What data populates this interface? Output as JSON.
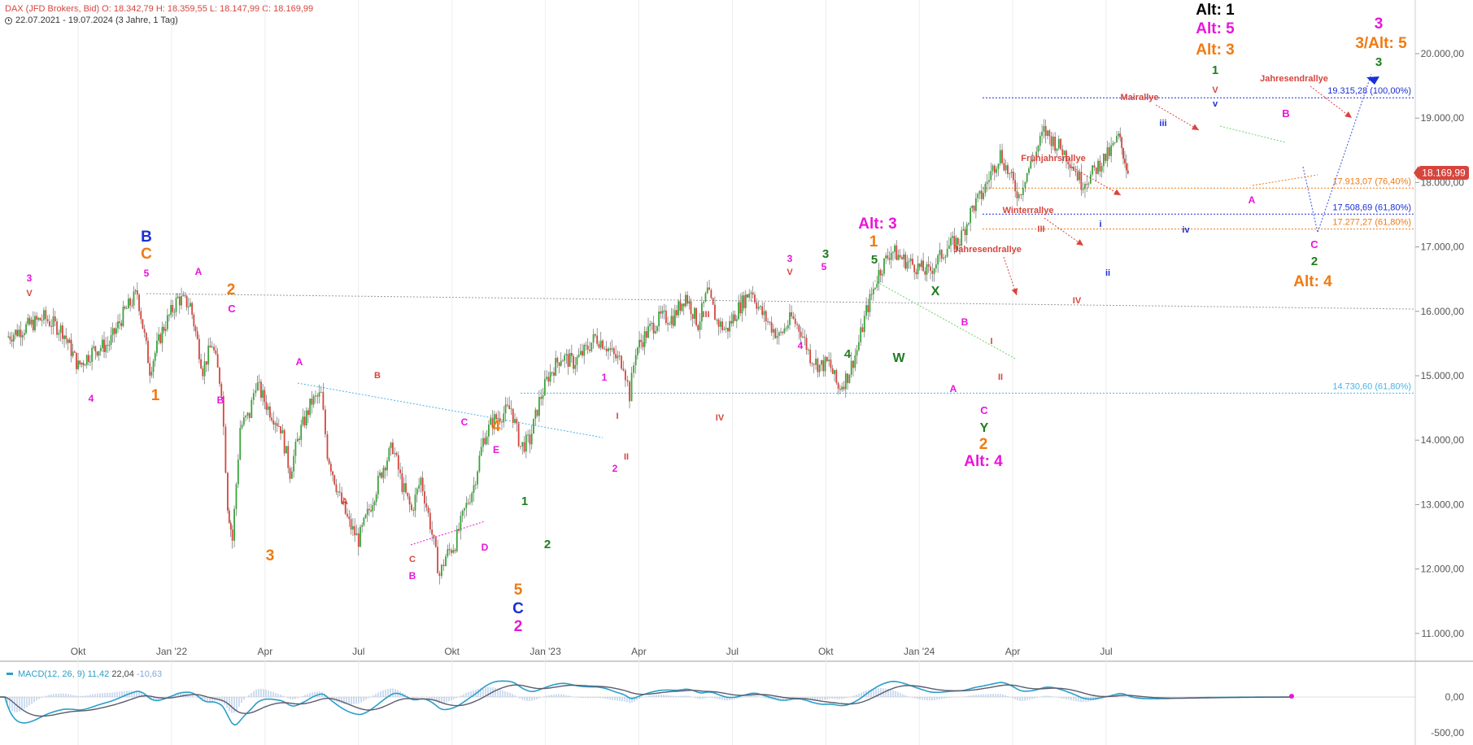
{
  "header": {
    "line1": "DAX (JFD Brokers, Bid)  O: 18.342,79  H: 18.359,55  L: 18.147,99  C: 18.169,99",
    "line2": "22.07.2021 - 19.07.2024   (3 Jahre, 1 Tag)"
  },
  "price_tag": "18.169,99",
  "macd": {
    "label": "MACD(12, 26, 9)",
    "v1": "11,42",
    "v2": "22,04",
    "v3": "-10,63",
    "ticks": [
      "0,00",
      "-500,00"
    ]
  },
  "colors": {
    "up": "#3aa43a",
    "down": "#d6453d",
    "magenta": "#e815d8",
    "orange": "#f07a12",
    "green": "#1e7d1e",
    "red": "#d6453d",
    "blue": "#1a2fd6",
    "black": "#000000",
    "fib_blue": "#1a2fd6",
    "fib_orange": "#f07a12",
    "fib_cyan": "#46b5e8"
  },
  "chart_data": {
    "type": "candlestick",
    "title": "DAX (JFD Brokers, Bid)",
    "period": "22.07.2021 - 19.07.2024",
    "ylim": [
      10800,
      20800
    ],
    "y_ticks": [
      "11.000,00",
      "12.000,00",
      "13.000,00",
      "14.000,00",
      "15.000,00",
      "16.000,00",
      "17.000,00",
      "18.000,00",
      "19.000,00",
      "20.000,00"
    ],
    "x_labels": [
      "Okt",
      "Jan '22",
      "Apr",
      "Jul",
      "Okt",
      "Jan '23",
      "Apr",
      "Jul",
      "Okt",
      "Jan '24",
      "Apr",
      "Jul"
    ],
    "x_ticks_month_index": [
      2.3,
      5.3,
      8.3,
      11.3,
      14.3,
      17.3,
      20.3,
      23.3,
      26.3,
      29.3,
      32.3,
      35.3
    ],
    "price_path_month_index_and_close": [
      [
        0,
        15600
      ],
      [
        0.8,
        15800
      ],
      [
        1.2,
        15900
      ],
      [
        1.8,
        15700
      ],
      [
        2.3,
        15150
      ],
      [
        2.8,
        15400
      ],
      [
        3.3,
        15500
      ],
      [
        3.8,
        16000
      ],
      [
        4.2,
        16280
      ],
      [
        4.6,
        15100
      ],
      [
        5.0,
        15700
      ],
      [
        5.5,
        16200
      ],
      [
        5.9,
        16100
      ],
      [
        6.3,
        15100
      ],
      [
        6.6,
        15500
      ],
      [
        6.9,
        14800
      ],
      [
        7.1,
        13000
      ],
      [
        7.25,
        12450
      ],
      [
        7.5,
        14200
      ],
      [
        7.8,
        14400
      ],
      [
        8.0,
        14900
      ],
      [
        8.4,
        14500
      ],
      [
        8.8,
        14200
      ],
      [
        9.1,
        13500
      ],
      [
        9.4,
        14100
      ],
      [
        9.8,
        14600
      ],
      [
        10.1,
        14700
      ],
      [
        10.3,
        13800
      ],
      [
        10.7,
        13100
      ],
      [
        11.0,
        12700
      ],
      [
        11.3,
        12450
      ],
      [
        11.7,
        13000
      ],
      [
        12.1,
        13600
      ],
      [
        12.4,
        13900
      ],
      [
        12.7,
        13300
      ],
      [
        13.0,
        12900
      ],
      [
        13.3,
        13400
      ],
      [
        13.6,
        12700
      ],
      [
        13.9,
        11900
      ],
      [
        14.1,
        12200
      ],
      [
        14.4,
        12400
      ],
      [
        14.7,
        12900
      ],
      [
        15.0,
        13300
      ],
      [
        15.3,
        14000
      ],
      [
        15.6,
        14300
      ],
      [
        15.9,
        14400
      ],
      [
        16.2,
        14500
      ],
      [
        16.5,
        13900
      ],
      [
        16.8,
        14000
      ],
      [
        17.1,
        14600
      ],
      [
        17.4,
        15000
      ],
      [
        17.8,
        15300
      ],
      [
        18.2,
        15200
      ],
      [
        18.6,
        15400
      ],
      [
        18.9,
        15600
      ],
      [
        19.2,
        15500
      ],
      [
        19.5,
        15300
      ],
      [
        19.8,
        15200
      ],
      [
        20.0,
        14700
      ],
      [
        20.2,
        15400
      ],
      [
        20.6,
        15700
      ],
      [
        21.0,
        15900
      ],
      [
        21.4,
        15900
      ],
      [
        21.8,
        16250
      ],
      [
        22.2,
        15800
      ],
      [
        22.5,
        16300
      ],
      [
        22.8,
        15850
      ],
      [
        23.1,
        15700
      ],
      [
        23.5,
        16050
      ],
      [
        23.9,
        16350
      ],
      [
        24.2,
        16000
      ],
      [
        24.5,
        15800
      ],
      [
        24.8,
        15600
      ],
      [
        25.2,
        15900
      ],
      [
        25.5,
        15700
      ],
      [
        25.8,
        15300
      ],
      [
        26.1,
        15150
      ],
      [
        26.4,
        15200
      ],
      [
        26.7,
        14800
      ],
      [
        27.0,
        15000
      ],
      [
        27.3,
        15400
      ],
      [
        27.6,
        16000
      ],
      [
        28.0,
        16600
      ],
      [
        28.4,
        16950
      ],
      [
        28.8,
        16800
      ],
      [
        29.2,
        16700
      ],
      [
        29.6,
        16600
      ],
      [
        29.9,
        16800
      ],
      [
        30.2,
        17000
      ],
      [
        30.6,
        17100
      ],
      [
        31.0,
        17600
      ],
      [
        31.3,
        17800
      ],
      [
        31.6,
        18150
      ],
      [
        31.9,
        18450
      ],
      [
        32.2,
        18100
      ],
      [
        32.5,
        17800
      ],
      [
        32.7,
        18100
      ],
      [
        33.0,
        18400
      ],
      [
        33.3,
        18800
      ],
      [
        33.6,
        18650
      ],
      [
        33.9,
        18500
      ],
      [
        34.2,
        18300
      ],
      [
        34.5,
        18000
      ],
      [
        34.8,
        18100
      ],
      [
        35.1,
        18300
      ],
      [
        35.4,
        18450
      ],
      [
        35.7,
        18700
      ],
      [
        35.85,
        18450
      ],
      [
        36.0,
        18170
      ]
    ],
    "fib_levels": [
      {
        "value": 19315.28,
        "label": "19.315,28 (100,00%)",
        "color": "blue"
      },
      {
        "value": 17913.07,
        "label": "17.913,07 (76,40%)",
        "color": "orange"
      },
      {
        "value": 17508.69,
        "label": "17.508,69 (61,80%)",
        "color": "blue"
      },
      {
        "value": 17277.27,
        "label": "17.277,27 (61,80%)",
        "color": "orange"
      },
      {
        "value": 14730.6,
        "label": "14.730,60 (61,80%)",
        "color": "cyan"
      }
    ],
    "wave_labels": [
      {
        "t": "3",
        "x": 36,
        "y": 346,
        "c": "magenta",
        "s": 12
      },
      {
        "t": "V",
        "x": 36,
        "y": 364,
        "c": "red",
        "s": 11
      },
      {
        "t": "4",
        "x": 112,
        "y": 494,
        "c": "magenta",
        "s": 12
      },
      {
        "t": "B",
        "x": 180,
        "y": 297,
        "c": "blue",
        "s": 19
      },
      {
        "t": "C",
        "x": 180,
        "y": 318,
        "c": "orange",
        "s": 19
      },
      {
        "t": "5",
        "x": 180,
        "y": 340,
        "c": "magenta",
        "s": 12
      },
      {
        "t": "1",
        "x": 191,
        "y": 492,
        "c": "orange",
        "s": 19
      },
      {
        "t": "A",
        "x": 244,
        "y": 338,
        "c": "magenta",
        "s": 12
      },
      {
        "t": "2",
        "x": 284,
        "y": 362,
        "c": "orange",
        "s": 19
      },
      {
        "t": "C",
        "x": 285,
        "y": 384,
        "c": "magenta",
        "s": 13
      },
      {
        "t": "B",
        "x": 271,
        "y": 496,
        "c": "magenta",
        "s": 12
      },
      {
        "t": "3",
        "x": 332,
        "y": 689,
        "c": "orange",
        "s": 19
      },
      {
        "t": "A",
        "x": 368,
        "y": 449,
        "c": "magenta",
        "s": 12
      },
      {
        "t": "B",
        "x": 464,
        "y": 465,
        "c": "red",
        "s": 11
      },
      {
        "t": "A",
        "x": 424,
        "y": 620,
        "c": "red",
        "s": 11
      },
      {
        "t": "C",
        "x": 507,
        "y": 691,
        "c": "red",
        "s": 11
      },
      {
        "t": "B",
        "x": 507,
        "y": 712,
        "c": "magenta",
        "s": 12
      },
      {
        "t": "C",
        "x": 571,
        "y": 523,
        "c": "magenta",
        "s": 12
      },
      {
        "t": "4",
        "x": 610,
        "y": 530,
        "c": "orange",
        "s": 19
      },
      {
        "t": "E",
        "x": 610,
        "y": 557,
        "c": "magenta",
        "s": 12
      },
      {
        "t": "D",
        "x": 596,
        "y": 677,
        "c": "magenta",
        "s": 12
      },
      {
        "t": "1",
        "x": 645,
        "y": 621,
        "c": "green",
        "s": 15
      },
      {
        "t": "2",
        "x": 673,
        "y": 674,
        "c": "green",
        "s": 15
      },
      {
        "t": "5",
        "x": 637,
        "y": 731,
        "c": "orange",
        "s": 19
      },
      {
        "t": "C",
        "x": 637,
        "y": 754,
        "c": "blue",
        "s": 19
      },
      {
        "t": "2",
        "x": 637,
        "y": 776,
        "c": "magenta",
        "s": 19
      },
      {
        "t": "1",
        "x": 743,
        "y": 468,
        "c": "magenta",
        "s": 12
      },
      {
        "t": "I",
        "x": 759,
        "y": 515,
        "c": "red",
        "s": 11
      },
      {
        "t": "II",
        "x": 770,
        "y": 565,
        "c": "red",
        "s": 11
      },
      {
        "t": "2",
        "x": 756,
        "y": 580,
        "c": "magenta",
        "s": 12
      },
      {
        "t": "III",
        "x": 868,
        "y": 390,
        "c": "red",
        "s": 11
      },
      {
        "t": "IV",
        "x": 885,
        "y": 517,
        "c": "red",
        "s": 11
      },
      {
        "t": "3",
        "x": 971,
        "y": 322,
        "c": "magenta",
        "s": 12
      },
      {
        "t": "V",
        "x": 971,
        "y": 338,
        "c": "red",
        "s": 11
      },
      {
        "t": "3",
        "x": 1015,
        "y": 317,
        "c": "green",
        "s": 15
      },
      {
        "t": "5",
        "x": 1013,
        "y": 332,
        "c": "magenta",
        "s": 12
      },
      {
        "t": "4",
        "x": 984,
        "y": 429,
        "c": "magenta",
        "s": 12
      },
      {
        "t": "Alt: 3",
        "x": 1079,
        "y": 281,
        "c": "magenta",
        "s": 19
      },
      {
        "t": "1",
        "x": 1074,
        "y": 303,
        "c": "orange",
        "s": 19
      },
      {
        "t": "5",
        "x": 1075,
        "y": 324,
        "c": "green",
        "s": 15
      },
      {
        "t": "4",
        "x": 1042,
        "y": 440,
        "c": "green",
        "s": 15
      },
      {
        "t": "X",
        "x": 1150,
        "y": 363,
        "c": "green",
        "s": 16
      },
      {
        "t": "W",
        "x": 1105,
        "y": 445,
        "c": "green",
        "s": 16
      },
      {
        "t": "B",
        "x": 1186,
        "y": 400,
        "c": "magenta",
        "s": 12
      },
      {
        "t": "I",
        "x": 1219,
        "y": 423,
        "c": "red",
        "s": 11
      },
      {
        "t": "A",
        "x": 1172,
        "y": 482,
        "c": "magenta",
        "s": 12
      },
      {
        "t": "II",
        "x": 1230,
        "y": 467,
        "c": "red",
        "s": 11
      },
      {
        "t": "C",
        "x": 1210,
        "y": 509,
        "c": "magenta",
        "s": 13
      },
      {
        "t": "Y",
        "x": 1210,
        "y": 531,
        "c": "green",
        "s": 16
      },
      {
        "t": "2",
        "x": 1209,
        "y": 552,
        "c": "orange",
        "s": 19
      },
      {
        "t": "Alt: 4",
        "x": 1209,
        "y": 573,
        "c": "magenta",
        "s": 19
      },
      {
        "t": "III",
        "x": 1280,
        "y": 285,
        "c": "red",
        "s": 11
      },
      {
        "t": "IV",
        "x": 1324,
        "y": 373,
        "c": "red",
        "s": 11
      },
      {
        "t": "i",
        "x": 1353,
        "y": 279,
        "c": "blue",
        "s": 11
      },
      {
        "t": "ii",
        "x": 1362,
        "y": 339,
        "c": "blue",
        "s": 11
      },
      {
        "t": "iii",
        "x": 1430,
        "y": 155,
        "c": "blue",
        "s": 11
      },
      {
        "t": "iv",
        "x": 1458,
        "y": 286,
        "c": "blue",
        "s": 11
      },
      {
        "t": "Alt: 1",
        "x": 1494,
        "y": 18,
        "c": "black",
        "s": 19
      },
      {
        "t": "Alt: 5",
        "x": 1494,
        "y": 41,
        "c": "magenta",
        "s": 19
      },
      {
        "t": "Alt: 3",
        "x": 1494,
        "y": 67,
        "c": "orange",
        "s": 19
      },
      {
        "t": "1",
        "x": 1494,
        "y": 91,
        "c": "green",
        "s": 15
      },
      {
        "t": "V",
        "x": 1494,
        "y": 114,
        "c": "red",
        "s": 11
      },
      {
        "t": "v",
        "x": 1494,
        "y": 131,
        "c": "blue",
        "s": 11
      },
      {
        "t": "B",
        "x": 1581,
        "y": 144,
        "c": "magenta",
        "s": 13
      },
      {
        "t": "A",
        "x": 1539,
        "y": 250,
        "c": "magenta",
        "s": 12
      },
      {
        "t": "C",
        "x": 1616,
        "y": 305,
        "c": "magenta",
        "s": 13
      },
      {
        "t": "2",
        "x": 1616,
        "y": 326,
        "c": "green",
        "s": 15
      },
      {
        "t": "Alt: 4",
        "x": 1614,
        "y": 352,
        "c": "orange",
        "s": 19
      },
      {
        "t": "3",
        "x": 1695,
        "y": 35,
        "c": "magenta",
        "s": 19
      },
      {
        "t": "3/Alt: 5",
        "x": 1698,
        "y": 59,
        "c": "orange",
        "s": 19
      },
      {
        "t": "3",
        "x": 1695,
        "y": 81,
        "c": "green",
        "s": 15
      }
    ],
    "rally_annotations": [
      {
        "t": "Jahresendrallye",
        "x": 1214,
        "y": 310
      },
      {
        "t": "Winterrallye",
        "x": 1264,
        "y": 262
      },
      {
        "t": "Frühjahrsrallye",
        "x": 1295,
        "y": 198
      },
      {
        "t": "Mairallye",
        "x": 1401,
        "y": 123
      },
      {
        "t": "Jahresendrallye",
        "x": 1591,
        "y": 100
      }
    ]
  }
}
